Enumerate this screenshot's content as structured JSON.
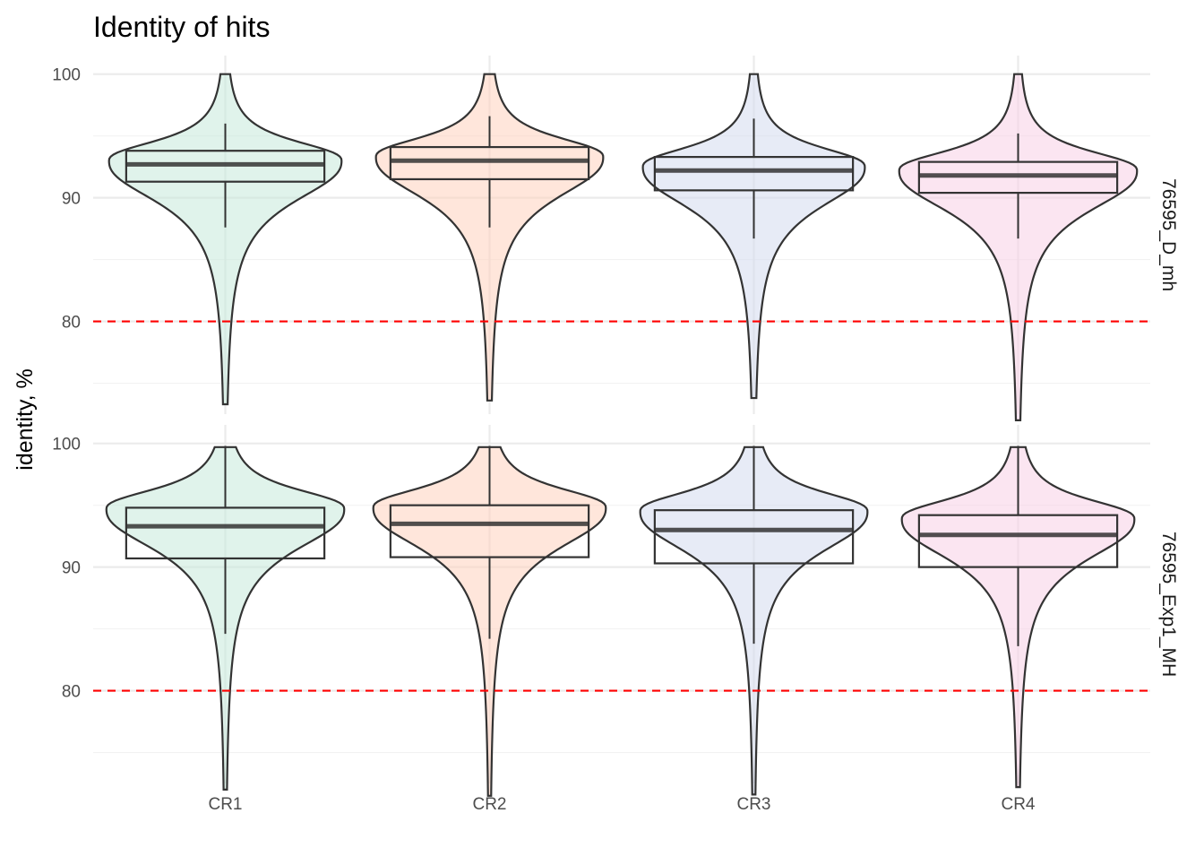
{
  "chart_data": {
    "type": "violin",
    "title": "Identity of hits",
    "xlabel": "",
    "ylabel": "identity, %",
    "categories": [
      "CR1",
      "CR2",
      "CR3",
      "CR4"
    ],
    "colors": [
      "#c6e9db",
      "#ffd1bd",
      "#d4dbee",
      "#f7cfe5"
    ],
    "y_ticks": [
      80,
      90,
      100
    ],
    "y_minor_ticks": [
      75,
      85,
      95
    ],
    "reference_line": {
      "y": 80,
      "color": "#ff0000",
      "style": "dashed"
    },
    "grid": true,
    "panels": [
      {
        "label": "76595_D_mh",
        "ylim": [
          72.5,
          101.5
        ],
        "series": [
          {
            "name": "CR1",
            "q1": 91.3,
            "median": 92.7,
            "q3": 93.8,
            "whisker_low": 87.6,
            "whisker_high": 96.0,
            "min": 73.3,
            "max": 100,
            "mode": 93.0,
            "dens_half_width": 0.44
          },
          {
            "name": "CR2",
            "q1": 91.5,
            "median": 93.0,
            "q3": 94.1,
            "whisker_low": 87.6,
            "whisker_high": 96.6,
            "min": 73.6,
            "max": 100,
            "mode": 93.3,
            "dens_half_width": 0.43
          },
          {
            "name": "CR3",
            "q1": 90.6,
            "median": 92.2,
            "q3": 93.3,
            "whisker_low": 86.7,
            "whisker_high": 96.4,
            "min": 73.8,
            "max": 100,
            "mode": 92.5,
            "dens_half_width": 0.42
          },
          {
            "name": "CR4",
            "q1": 90.4,
            "median": 91.8,
            "q3": 92.9,
            "whisker_low": 86.7,
            "whisker_high": 95.2,
            "min": 72.0,
            "max": 100,
            "mode": 92.2,
            "dens_half_width": 0.45
          }
        ]
      },
      {
        "label": "76595_Exp1_MH",
        "ylim": [
          72.5,
          101.5
        ],
        "series": [
          {
            "name": "CR1",
            "q1": 90.7,
            "median": 93.3,
            "q3": 94.8,
            "whisker_low": 84.6,
            "whisker_high": 99.8,
            "min": 72.0,
            "max": 99.7,
            "mode": 94.7,
            "dens_half_width": 0.45
          },
          {
            "name": "CR2",
            "q1": 90.8,
            "median": 93.5,
            "q3": 95.0,
            "whisker_low": 84.2,
            "whisker_high": 99.8,
            "min": 71.5,
            "max": 99.7,
            "mode": 94.8,
            "dens_half_width": 0.44
          },
          {
            "name": "CR3",
            "q1": 90.3,
            "median": 93.0,
            "q3": 94.6,
            "whisker_low": 83.8,
            "whisker_high": 99.8,
            "min": 71.6,
            "max": 99.7,
            "mode": 94.5,
            "dens_half_width": 0.43
          },
          {
            "name": "CR4",
            "q1": 90.0,
            "median": 92.6,
            "q3": 94.2,
            "whisker_low": 83.6,
            "whisker_high": 99.8,
            "min": 72.2,
            "max": 99.7,
            "mode": 93.9,
            "dens_half_width": 0.44
          }
        ]
      }
    ]
  }
}
